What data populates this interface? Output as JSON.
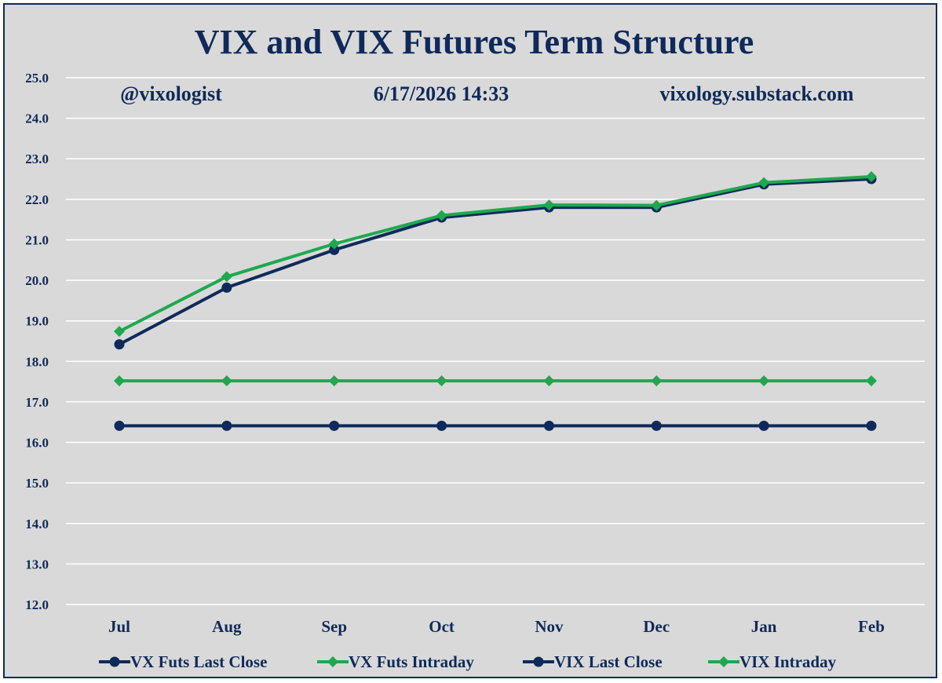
{
  "chart_data": {
    "type": "line",
    "title": "VIX and VIX Futures Term Structure",
    "annotations": {
      "handle": "@vixologist",
      "timestamp": "6/17/2026 14:33",
      "website": "vixology.substack.com"
    },
    "categories": [
      "Jul",
      "Aug",
      "Sep",
      "Oct",
      "Nov",
      "Dec",
      "Jan",
      "Feb"
    ],
    "ylim": [
      12.0,
      25.0
    ],
    "yticks": [
      "25.0",
      "24.0",
      "23.0",
      "22.0",
      "21.0",
      "20.0",
      "19.0",
      "18.0",
      "17.0",
      "16.0",
      "15.0",
      "14.0",
      "13.0",
      "12.0"
    ],
    "grid": true,
    "legend_position": "bottom",
    "series": [
      {
        "name": "VX Futs Last Close",
        "color": "#0f2a5a",
        "marker": "circle",
        "values": [
          18.42,
          19.82,
          20.75,
          21.55,
          21.8,
          21.8,
          22.37,
          22.5
        ]
      },
      {
        "name": "VX Futs Intraday",
        "color": "#1fa84f",
        "marker": "diamond",
        "values": [
          18.74,
          20.09,
          20.9,
          21.6,
          21.86,
          21.85,
          22.41,
          22.56
        ]
      },
      {
        "name": "VIX Last Close",
        "color": "#0f2a5a",
        "marker": "circle",
        "values": [
          16.41,
          16.41,
          16.41,
          16.41,
          16.41,
          16.41,
          16.41,
          16.41
        ]
      },
      {
        "name": "VIX Intraday",
        "color": "#1fa84f",
        "marker": "diamond",
        "values": [
          17.52,
          17.52,
          17.52,
          17.52,
          17.52,
          17.52,
          17.52,
          17.52
        ]
      }
    ]
  }
}
